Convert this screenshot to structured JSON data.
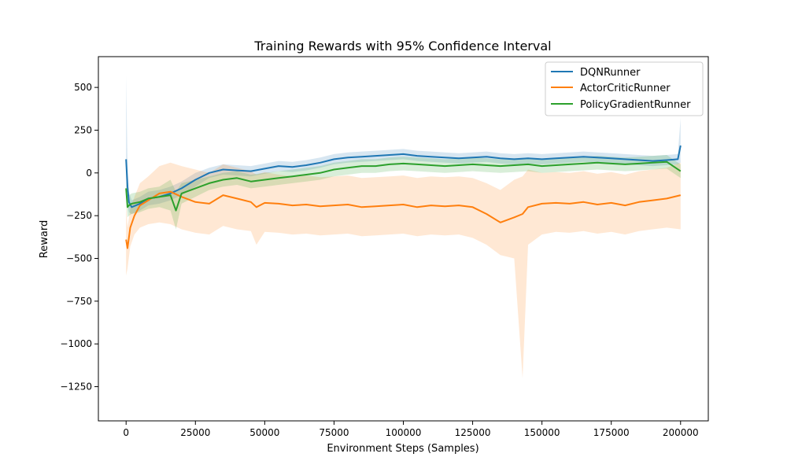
{
  "chart_data": {
    "type": "line",
    "title": "Training Rewards with 95% Confidence Interval",
    "xlabel": "Environment Steps (Samples)",
    "ylabel": "Reward",
    "xlim": [
      -10000,
      210000
    ],
    "ylim": [
      -1450,
      680
    ],
    "xticks": [
      0,
      25000,
      50000,
      75000,
      100000,
      125000,
      150000,
      175000,
      200000
    ],
    "xtick_labels": [
      "0",
      "25000",
      "50000",
      "75000",
      "100000",
      "125000",
      "150000",
      "175000",
      "200000"
    ],
    "yticks": [
      500,
      250,
      0,
      -250,
      -500,
      -750,
      -1000,
      -1250
    ],
    "ytick_labels": [
      "500",
      "250",
      "0",
      "−250",
      "−500",
      "−750",
      "−1000",
      "−1250"
    ],
    "grid": false,
    "legend_position": "top-right",
    "confidence_interval": "95%",
    "series": [
      {
        "name": "DQNRunner",
        "color": "#1f77b4",
        "x": [
          0,
          500,
          1000,
          2000,
          5000,
          8000,
          12000,
          16000,
          20000,
          25000,
          30000,
          35000,
          40000,
          45000,
          50000,
          55000,
          60000,
          65000,
          70000,
          75000,
          80000,
          85000,
          90000,
          95000,
          100000,
          105000,
          110000,
          115000,
          120000,
          125000,
          130000,
          135000,
          140000,
          145000,
          150000,
          155000,
          160000,
          165000,
          170000,
          175000,
          180000,
          185000,
          190000,
          195000,
          199000,
          200000
        ],
        "y": [
          80,
          -80,
          -170,
          -200,
          -180,
          -150,
          -140,
          -120,
          -90,
          -40,
          0,
          20,
          15,
          10,
          25,
          40,
          35,
          45,
          60,
          80,
          90,
          95,
          100,
          105,
          110,
          100,
          95,
          90,
          85,
          90,
          95,
          85,
          80,
          85,
          80,
          85,
          90,
          95,
          90,
          85,
          80,
          75,
          70,
          75,
          80,
          160
        ],
        "ci_low": [
          -100,
          -180,
          -230,
          -240,
          -220,
          -190,
          -180,
          -160,
          -130,
          -80,
          -30,
          -10,
          -15,
          -20,
          -5,
          10,
          5,
          15,
          30,
          50,
          60,
          65,
          70,
          75,
          80,
          70,
          65,
          60,
          55,
          60,
          65,
          55,
          50,
          55,
          50,
          55,
          60,
          65,
          60,
          55,
          50,
          45,
          40,
          45,
          50,
          60
        ],
        "ci_high": [
          570,
          60,
          -110,
          -160,
          -140,
          -110,
          -100,
          -80,
          -50,
          0,
          30,
          50,
          45,
          40,
          55,
          70,
          65,
          75,
          90,
          110,
          120,
          125,
          130,
          135,
          140,
          130,
          125,
          120,
          115,
          120,
          125,
          115,
          110,
          115,
          110,
          115,
          120,
          125,
          120,
          115,
          110,
          105,
          100,
          105,
          110,
          320
        ]
      },
      {
        "name": "ActorCriticRunner",
        "color": "#ff7f0e",
        "x": [
          0,
          500,
          1500,
          3000,
          5000,
          8000,
          12000,
          16000,
          20000,
          25000,
          30000,
          33000,
          35000,
          40000,
          45000,
          47000,
          50000,
          55000,
          60000,
          65000,
          70000,
          75000,
          80000,
          85000,
          90000,
          95000,
          100000,
          105000,
          110000,
          115000,
          120000,
          125000,
          130000,
          135000,
          140000,
          143000,
          145000,
          150000,
          155000,
          160000,
          165000,
          170000,
          175000,
          180000,
          185000,
          190000,
          195000,
          200000
        ],
        "y": [
          -390,
          -440,
          -320,
          -250,
          -190,
          -160,
          -120,
          -110,
          -140,
          -170,
          -180,
          -150,
          -130,
          -150,
          -170,
          -200,
          -175,
          -180,
          -190,
          -185,
          -195,
          -190,
          -185,
          -200,
          -195,
          -190,
          -185,
          -200,
          -190,
          -195,
          -190,
          -200,
          -240,
          -290,
          -260,
          -240,
          -200,
          -180,
          -175,
          -180,
          -170,
          -185,
          -175,
          -190,
          -170,
          -160,
          -150,
          -130
        ],
        "ci_low": [
          -600,
          -560,
          -430,
          -360,
          -320,
          -300,
          -290,
          -300,
          -330,
          -350,
          -360,
          -330,
          -310,
          -330,
          -340,
          -420,
          -345,
          -350,
          -360,
          -355,
          -365,
          -360,
          -355,
          -370,
          -365,
          -360,
          -355,
          -370,
          -360,
          -365,
          -360,
          -380,
          -420,
          -480,
          -500,
          -1200,
          -420,
          -360,
          -345,
          -350,
          -340,
          -355,
          -345,
          -360,
          -340,
          -330,
          -320,
          -330
        ],
        "ci_high": [
          -180,
          -320,
          -210,
          -140,
          -60,
          -20,
          40,
          60,
          40,
          20,
          0,
          30,
          50,
          30,
          10,
          -10,
          5,
          -10,
          -20,
          -15,
          -25,
          -20,
          -15,
          -30,
          -25,
          -20,
          -15,
          -30,
          -20,
          -25,
          -20,
          -30,
          -60,
          -100,
          -40,
          -20,
          20,
          0,
          5,
          0,
          10,
          -5,
          5,
          -10,
          10,
          20,
          30,
          60
        ]
      },
      {
        "name": "PolicyGradientRunner",
        "color": "#2ca02c",
        "x": [
          0,
          500,
          1000,
          2000,
          5000,
          8000,
          12000,
          16000,
          18000,
          20000,
          25000,
          30000,
          35000,
          40000,
          45000,
          50000,
          55000,
          60000,
          65000,
          70000,
          75000,
          80000,
          85000,
          90000,
          95000,
          100000,
          105000,
          110000,
          115000,
          120000,
          125000,
          130000,
          135000,
          140000,
          145000,
          150000,
          155000,
          160000,
          165000,
          170000,
          175000,
          180000,
          185000,
          190000,
          195000,
          200000
        ],
        "y": [
          -90,
          -200,
          -190,
          -180,
          -170,
          -150,
          -140,
          -130,
          -220,
          -120,
          -90,
          -60,
          -40,
          -30,
          -50,
          -40,
          -30,
          -20,
          -10,
          0,
          20,
          30,
          40,
          40,
          50,
          55,
          50,
          45,
          40,
          45,
          50,
          45,
          40,
          45,
          50,
          40,
          45,
          50,
          55,
          60,
          55,
          50,
          55,
          60,
          65,
          10
        ],
        "ci_low": [
          -130,
          -260,
          -250,
          -240,
          -230,
          -210,
          -200,
          -220,
          -330,
          -180,
          -140,
          -100,
          -80,
          -70,
          -90,
          -80,
          -70,
          -60,
          -50,
          -40,
          -20,
          -10,
          0,
          0,
          10,
          15,
          10,
          5,
          0,
          5,
          10,
          5,
          0,
          5,
          10,
          0,
          5,
          10,
          15,
          20,
          15,
          10,
          15,
          20,
          25,
          -30
        ],
        "ci_high": [
          -50,
          -140,
          -130,
          -120,
          -110,
          -90,
          -80,
          -40,
          -110,
          -60,
          -40,
          -20,
          0,
          10,
          -10,
          0,
          10,
          20,
          30,
          40,
          60,
          70,
          80,
          80,
          90,
          95,
          90,
          85,
          80,
          85,
          90,
          85,
          80,
          85,
          90,
          80,
          85,
          90,
          95,
          100,
          95,
          90,
          95,
          100,
          105,
          50
        ]
      }
    ]
  }
}
